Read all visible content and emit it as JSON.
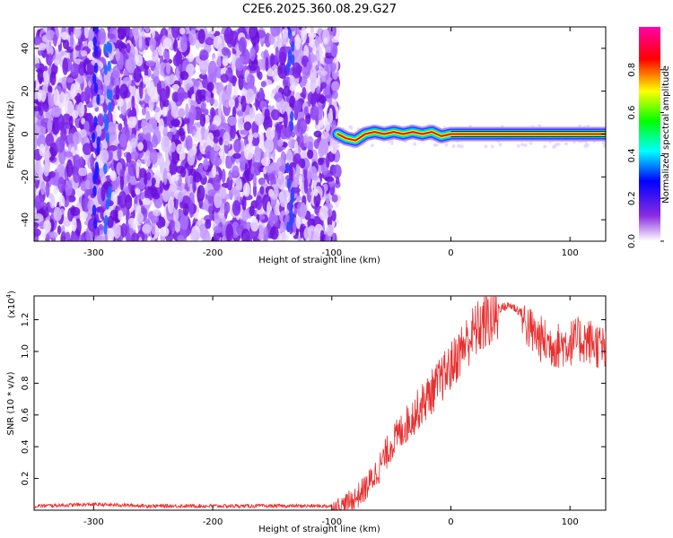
{
  "figure_title": "C2E6.2025.360.08.29.G27",
  "colors": {
    "line": "#e83030",
    "axis": "#000000",
    "ridge": "#e8001a"
  },
  "chart_data": [
    {
      "type": "heatmap",
      "title": "C2E6.2025.360.08.29.G27",
      "xlabel": "Height of straight line (km)",
      "ylabel": "Frequency (Hz)",
      "xlim": [
        -350,
        130
      ],
      "ylim": [
        -50,
        50
      ],
      "x_ticks": [
        -300,
        -200,
        -100,
        0,
        100
      ],
      "y_ticks": [
        -40,
        -20,
        0,
        20,
        40
      ],
      "colorbar": {
        "label": "Normalized spectral amplitude",
        "range": [
          0,
          1
        ],
        "ticks": [
          0.0,
          0.2,
          0.4,
          0.6,
          0.8
        ],
        "tick_labels": [
          "0.0",
          "0.2",
          "0.4",
          "0.6",
          "0.8"
        ],
        "colormap": [
          "#ffffff",
          "#8a2be2",
          "#0000ff",
          "#00ffff",
          "#00ff00",
          "#ffff00",
          "#ff0000",
          "#ff00ff"
        ]
      },
      "regions": {
        "noise_band": {
          "x_range": [
            -350,
            -95
          ],
          "amplitude_range": [
            0.0,
            0.25
          ]
        },
        "signal_ridge": {
          "x_range": [
            -95,
            130
          ],
          "frequency_hz": 0,
          "peak_amplitude": 1.0
        }
      },
      "ridge_path": {
        "x": [
          -95,
          -88,
          -80,
          -72,
          -64,
          -56,
          -48,
          -40,
          -32,
          -24,
          -16,
          -8,
          0,
          130
        ],
        "y": [
          0,
          -2,
          -3,
          0,
          1,
          0,
          1,
          0,
          1,
          0,
          1,
          -1,
          0,
          0
        ]
      }
    },
    {
      "type": "line",
      "xlabel": "Height of straight line (km)",
      "ylabel": "SNR (10 * v/v)",
      "y_scale_label": "(x10",
      "y_scale_exponent": "4",
      "y_scale_suffix": ")",
      "xlim": [
        -350,
        130
      ],
      "ylim": [
        0,
        1.35
      ],
      "x_ticks": [
        -300,
        -200,
        -100,
        0,
        100
      ],
      "y_ticks": [
        0.2,
        0.4,
        0.6,
        0.8,
        1.0,
        1.2
      ],
      "y_tick_labels": [
        "0.2",
        "0.4",
        "0.6",
        "0.8",
        "1.0",
        "1.2"
      ],
      "series": [
        {
          "name": "SNR",
          "x": [
            -350,
            -300,
            -250,
            -200,
            -150,
            -100,
            -90,
            -80,
            -70,
            -60,
            -50,
            -40,
            -30,
            -20,
            -10,
            0,
            10,
            20,
            30,
            40,
            50,
            60,
            70,
            80,
            90,
            100,
            110,
            120,
            130
          ],
          "y": [
            0.03,
            0.04,
            0.03,
            0.03,
            0.03,
            0.03,
            0.05,
            0.1,
            0.18,
            0.3,
            0.45,
            0.55,
            0.65,
            0.75,
            0.85,
            0.95,
            1.08,
            1.18,
            1.25,
            1.28,
            1.3,
            1.25,
            1.15,
            1.1,
            1.08,
            1.1,
            1.12,
            1.1,
            1.05
          ]
        }
      ]
    }
  ]
}
